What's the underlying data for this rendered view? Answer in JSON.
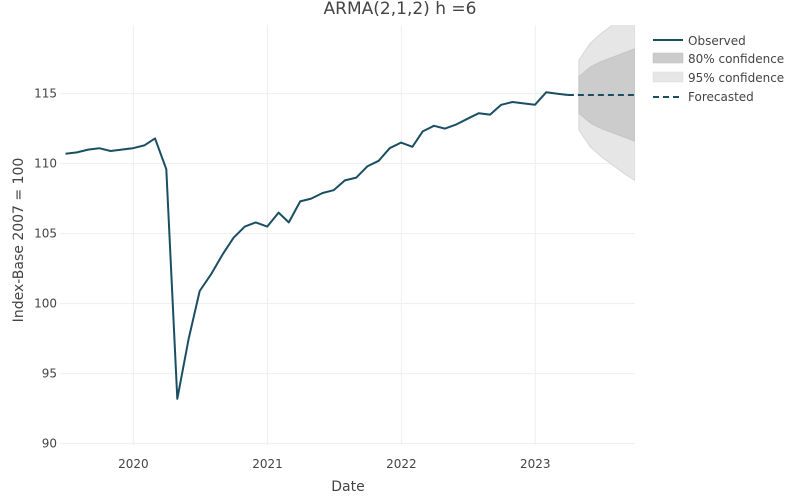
{
  "chart_data": {
    "type": "line",
    "title": "ARMA(2,1,2) h =6",
    "xlabel": "Date",
    "ylabel": "Index-Base 2007 = 100",
    "xlim": [
      "2019-06-15",
      "2023-09-30"
    ],
    "ylim": [
      89.9,
      119.9
    ],
    "x_ticks": [
      "2020-01-01",
      "2021-01-01",
      "2022-01-01",
      "2023-01-01"
    ],
    "x_tick_labels": [
      "2020",
      "2021",
      "2022",
      "2023"
    ],
    "y_ticks": [
      90,
      95,
      100,
      105,
      110,
      115
    ],
    "y_tick_labels": [
      "90",
      "95",
      "100",
      "105",
      "110",
      "115"
    ],
    "grid": true,
    "legend_position": "top-right",
    "legend": [
      {
        "label": "Observed",
        "style": "solid-line"
      },
      {
        "label": "80% confidence",
        "style": "band-80"
      },
      {
        "label": "95% confidence",
        "style": "band-95"
      },
      {
        "label": "Forecasted",
        "style": "dashed-line"
      }
    ],
    "colors": {
      "observed": "#1a4f63",
      "forecast": "#1a4f63",
      "band80": "#cccccc",
      "band95": "#e6e6e6",
      "grid": "#eeeeee",
      "text": "#444444"
    },
    "series": [
      {
        "name": "Observed",
        "x": [
          "2019-06-30",
          "2019-07-31",
          "2019-08-31",
          "2019-09-30",
          "2019-10-31",
          "2019-11-30",
          "2019-12-31",
          "2020-01-31",
          "2020-02-29",
          "2020-03-31",
          "2020-04-30",
          "2020-05-31",
          "2020-06-30",
          "2020-07-31",
          "2020-08-31",
          "2020-09-30",
          "2020-10-31",
          "2020-11-30",
          "2020-12-31",
          "2021-01-31",
          "2021-02-28",
          "2021-03-31",
          "2021-04-30",
          "2021-05-31",
          "2021-06-30",
          "2021-07-31",
          "2021-08-31",
          "2021-09-30",
          "2021-10-31",
          "2021-11-30",
          "2021-12-31",
          "2022-01-31",
          "2022-02-28",
          "2022-03-31",
          "2022-04-30",
          "2022-05-31",
          "2022-06-30",
          "2022-07-31",
          "2022-08-31",
          "2022-09-30",
          "2022-10-31",
          "2022-11-30",
          "2022-12-31",
          "2023-01-31",
          "2023-02-28",
          "2023-03-31"
        ],
        "values": [
          110.7,
          110.8,
          111.0,
          111.1,
          110.9,
          111.0,
          111.1,
          111.3,
          111.8,
          109.6,
          93.2,
          97.5,
          100.9,
          102.1,
          103.5,
          104.7,
          105.5,
          105.8,
          105.5,
          106.5,
          105.8,
          107.3,
          107.5,
          107.9,
          108.1,
          108.8,
          109.0,
          109.8,
          110.2,
          111.1,
          111.5,
          111.2,
          112.3,
          112.7,
          112.5,
          112.8,
          113.2,
          113.6,
          113.5,
          114.2,
          114.4,
          114.3,
          114.2,
          115.1,
          115.0,
          114.9
        ]
      },
      {
        "name": "Forecasted",
        "x": [
          "2023-03-31",
          "2023-04-30",
          "2023-05-31",
          "2023-06-30",
          "2023-07-31",
          "2023-08-31",
          "2023-09-30"
        ],
        "values": [
          114.9,
          114.9,
          114.9,
          114.9,
          114.9,
          114.9,
          114.9
        ]
      },
      {
        "name": "80% confidence",
        "x": [
          "2023-04-30",
          "2023-05-31",
          "2023-06-30",
          "2023-07-31",
          "2023-08-31",
          "2023-09-30"
        ],
        "upper": [
          116.2,
          116.9,
          117.3,
          117.6,
          117.9,
          118.2
        ],
        "lower": [
          113.6,
          112.9,
          112.5,
          112.2,
          111.9,
          111.6
        ]
      },
      {
        "name": "95% confidence",
        "x": [
          "2023-04-30",
          "2023-05-31",
          "2023-06-30",
          "2023-07-31",
          "2023-08-31",
          "2023-09-30"
        ],
        "upper": [
          117.4,
          118.6,
          119.3,
          119.9,
          120.5,
          121.0
        ],
        "lower": [
          112.4,
          111.2,
          110.5,
          109.9,
          109.3,
          108.8
        ]
      }
    ]
  }
}
